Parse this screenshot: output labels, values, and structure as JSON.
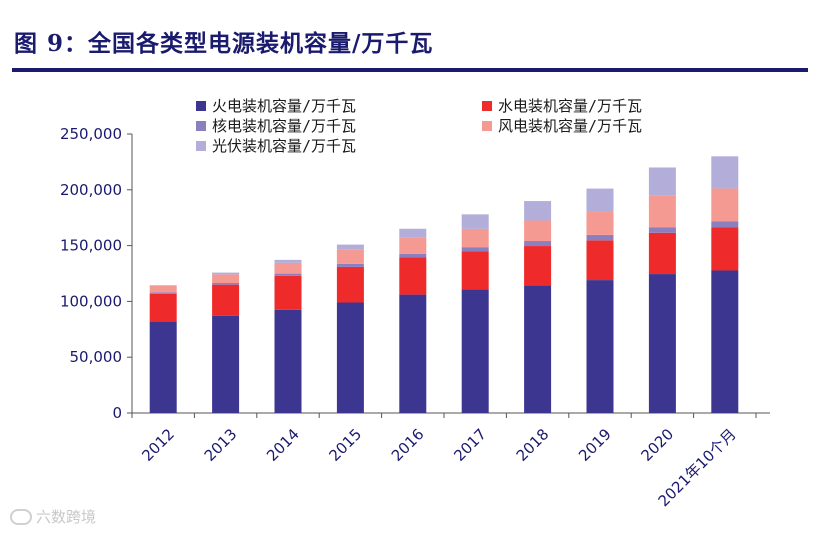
{
  "figure_title": "图 9：全国各类型电源装机容量/万千瓦",
  "watermark": "六数跨境",
  "chart_data": {
    "type": "bar",
    "stacked": true,
    "categories": [
      "2012",
      "2013",
      "2014",
      "2015",
      "2016",
      "2017",
      "2018",
      "2019",
      "2020",
      "2021年10个月"
    ],
    "ylim": [
      0,
      250000
    ],
    "yticks": [
      0,
      50000,
      100000,
      150000,
      200000,
      250000
    ],
    "ytick_labels": [
      "0",
      "50,000",
      "100,000",
      "150,000",
      "200,000",
      "250,000"
    ],
    "grid": false,
    "legend_position": "top",
    "series": [
      {
        "name": "火电装机容量/万千瓦",
        "color": "#3c3691",
        "values": [
          81900,
          87000,
          92400,
          99000,
          106100,
          110600,
          114400,
          119100,
          124500,
          127700
        ]
      },
      {
        "name": "水电装机容量/万千瓦",
        "color": "#ee2a2a",
        "values": [
          24900,
          28000,
          30500,
          31900,
          33200,
          34400,
          35200,
          35600,
          37000,
          38500
        ]
      },
      {
        "name": "核电装机容量/万千瓦",
        "color": "#8b7fc0",
        "values": [
          1300,
          1500,
          2000,
          2700,
          3400,
          3600,
          4500,
          4900,
          5000,
          5400
        ]
      },
      {
        "name": "风电装机容量/万千瓦",
        "color": "#f59a93",
        "values": [
          6100,
          7700,
          9600,
          13100,
          14700,
          16400,
          18400,
          21000,
          28200,
          29600
        ]
      },
      {
        "name": "光伏装机容量/万千瓦",
        "color": "#b2aed9",
        "values": [
          300,
          1600,
          2700,
          4200,
          7700,
          13000,
          17400,
          20500,
          25300,
          28800
        ]
      }
    ]
  }
}
